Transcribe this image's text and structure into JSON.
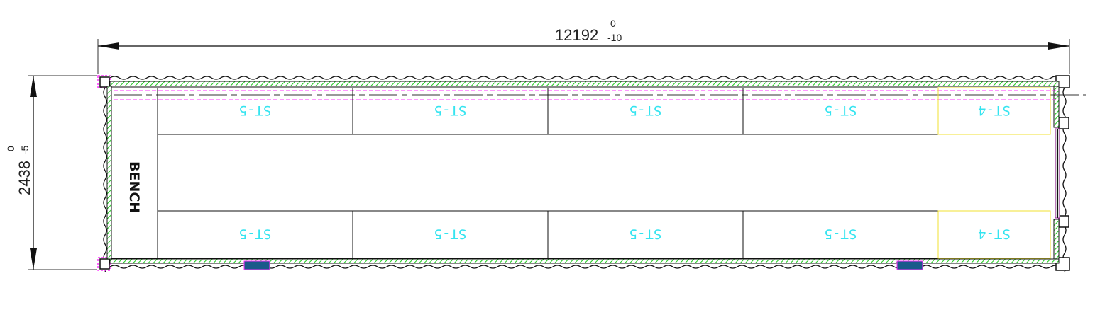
{
  "dimensions": {
    "length": {
      "nominal": "12192",
      "upper_tol": "0",
      "lower_tol": "-10"
    },
    "width": {
      "nominal": "2438",
      "upper_tol": "0",
      "lower_tol": "-5"
    }
  },
  "bench_label": "BENCH",
  "top_row": [
    "ST-5",
    "ST-5",
    "ST-5",
    "ST-5",
    "ST-4"
  ],
  "bottom_row": [
    "ST-5",
    "ST-5",
    "ST-5",
    "ST-5",
    "ST-4"
  ],
  "colors": {
    "wall_hatch": "#22cc22",
    "hidden_line": "#ff33ff",
    "label": "#35e4f0",
    "highlight_box": "#f0e030",
    "vent": "#1a5a8a"
  }
}
